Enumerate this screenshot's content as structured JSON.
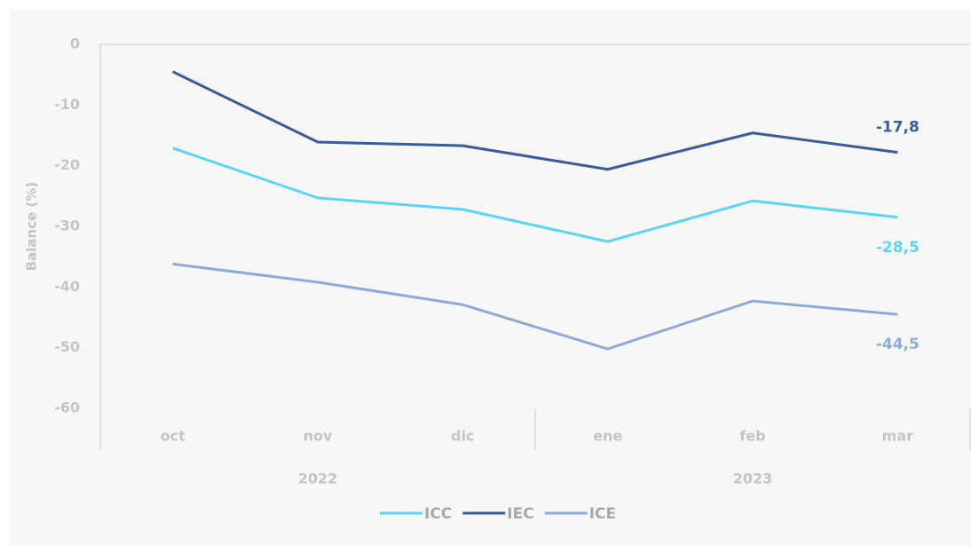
{
  "chart_data": {
    "type": "line",
    "y_label": "Balance (%)",
    "categories": [
      "oct",
      "nov",
      "dic",
      "ene",
      "feb",
      "mar"
    ],
    "x_groups": [
      {
        "label": "2022",
        "size": 3
      },
      {
        "label": "2023",
        "size": 3
      }
    ],
    "series": [
      {
        "name": "ICC",
        "color": "#5cd4f6",
        "values": [
          -17.1,
          -25.3,
          -27.2,
          -32.5,
          -25.8,
          -28.5
        ],
        "value_labels": [
          null,
          null,
          null,
          null,
          null,
          "-28,5"
        ]
      },
      {
        "name": "IEC",
        "color": "#3b5b99",
        "values": [
          -4.5,
          -16.1,
          -16.7,
          -20.6,
          -14.6,
          -17.8
        ],
        "value_labels": [
          null,
          null,
          null,
          null,
          null,
          "-17,8"
        ]
      },
      {
        "name": "ICE",
        "color": "#8eaad9",
        "values": [
          -36.2,
          -39.2,
          -42.9,
          -50.2,
          -42.3,
          -44.5
        ],
        "value_labels": [
          null,
          null,
          null,
          null,
          null,
          "-44,5"
        ]
      }
    ],
    "ylim": [
      -60,
      0
    ],
    "yticks": [
      0,
      -10,
      -20,
      -30,
      -40,
      -50,
      -60
    ],
    "legend": "bottom"
  }
}
